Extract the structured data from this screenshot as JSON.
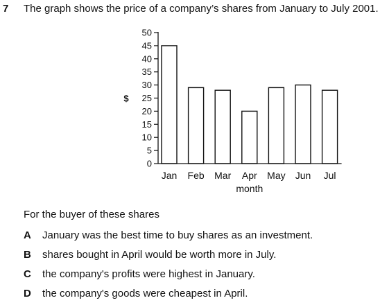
{
  "question": {
    "number": "7",
    "stem": "The graph shows the price of a company’s shares from January to July 2001.",
    "intro": "For the buyer of these shares",
    "options": [
      {
        "letter": "A",
        "text": "January was the best time to buy shares as an investment."
      },
      {
        "letter": "B",
        "text": "shares bought in April would be worth more in July."
      },
      {
        "letter": "C",
        "text": "the company's profits were highest in January."
      },
      {
        "letter": "D",
        "text": "the company's goods were cheapest in April."
      }
    ]
  },
  "chart_data": {
    "type": "bar",
    "title": "",
    "xlabel": "month",
    "ylabel": "$",
    "categories": [
      "Jan",
      "Feb",
      "Mar",
      "Apr",
      "May",
      "Jun",
      "Jul"
    ],
    "values": [
      45,
      29,
      28,
      20,
      29,
      30,
      28
    ],
    "ylim": [
      0,
      50
    ],
    "yticks": [
      0,
      5,
      10,
      15,
      20,
      25,
      30,
      35,
      40,
      45,
      50
    ],
    "grid": false,
    "bar_fill": "#ffffff",
    "bar_stroke": "#111111"
  }
}
